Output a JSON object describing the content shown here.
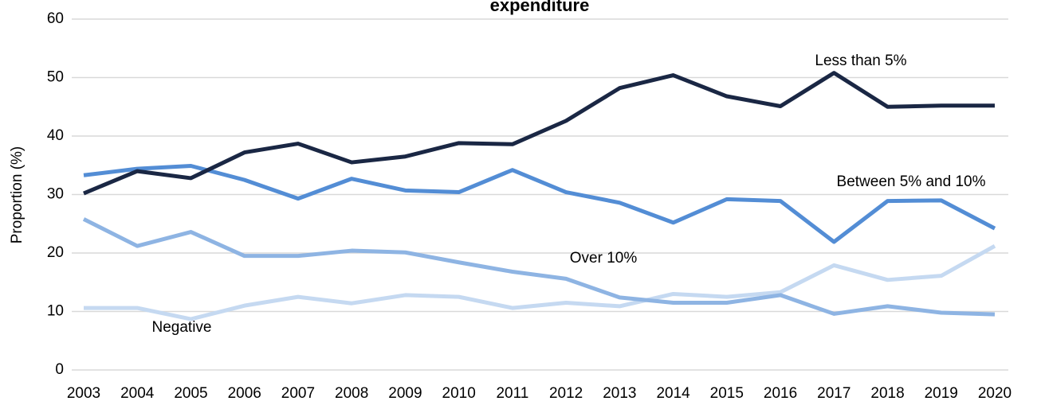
{
  "chart_data": {
    "type": "line",
    "title": "expenditure",
    "y_label": "Proportion (%)",
    "categories": [
      "2003",
      "2004",
      "2005",
      "2006",
      "2007",
      "2008",
      "2009",
      "2010",
      "2011",
      "2012",
      "2013",
      "2014",
      "2015",
      "2016",
      "2017",
      "2018",
      "2019",
      "2020"
    ],
    "series": [
      {
        "name": "Less than 5%",
        "color": "#1a2744",
        "values": [
          30.2,
          34,
          32.8,
          37.2,
          38.7,
          35.5,
          36.5,
          38.8,
          38.6,
          42.6,
          48.2,
          50.4,
          46.8,
          45.1,
          50.8,
          45,
          45.2,
          45.2
        ]
      },
      {
        "name": "Between 5% and 10%",
        "color": "#538dd5",
        "values": [
          33.3,
          34.4,
          34.9,
          32.5,
          29.3,
          32.7,
          30.7,
          30.4,
          34.2,
          30.4,
          28.6,
          25.2,
          29.2,
          28.9,
          21.9,
          28.9,
          29,
          24.2
        ]
      },
      {
        "name": "Over 10%",
        "color": "#8eb4e3",
        "values": [
          25.8,
          21.2,
          23.6,
          19.5,
          19.5,
          20.4,
          20.1,
          18.4,
          16.8,
          15.6,
          12.4,
          11.5,
          11.5,
          12.8,
          9.6,
          10.9,
          9.8,
          9.5
        ]
      },
      {
        "name": "Negative",
        "color": "#c5d9f1",
        "values": [
          10.6,
          10.6,
          8.7,
          11,
          12.5,
          11.4,
          12.8,
          12.5,
          10.6,
          11.5,
          10.9,
          13,
          12.5,
          13.3,
          17.9,
          15.4,
          16.1,
          21.2
        ]
      }
    ],
    "ylim": [
      0,
      60
    ],
    "yticks": [
      0,
      10,
      20,
      30,
      40,
      50,
      60
    ],
    "grid": true
  }
}
